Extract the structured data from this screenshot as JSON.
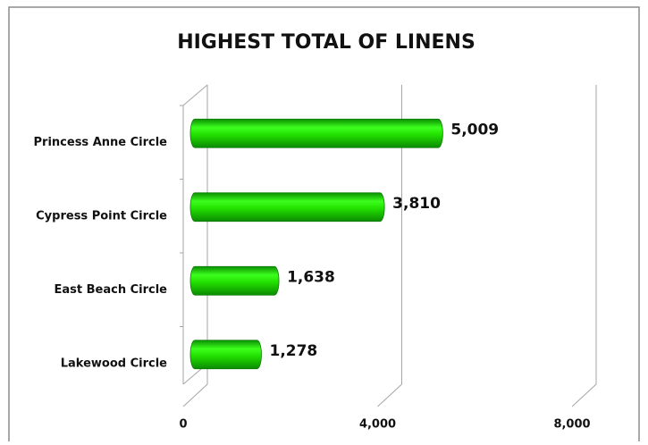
{
  "chart_data": {
    "type": "bar",
    "orientation": "horizontal",
    "title": "HIGHEST TOTAL OF LINENS",
    "categories": [
      "Princess Anne Circle",
      "Cypress Point Circle",
      "East Beach Circle",
      "Lakewood Circle"
    ],
    "values": [
      5009,
      3810,
      1638,
      1278
    ],
    "value_labels": [
      "5,009",
      "3,810",
      "1,638",
      "1,278"
    ],
    "color": "#22dd00",
    "xlim": [
      0,
      8000
    ],
    "xticks": [
      0,
      {
        "value": 4000,
        "label": "4,000"
      },
      {
        "value": 8000,
        "label": "8,000"
      }
    ],
    "grid": true
  }
}
